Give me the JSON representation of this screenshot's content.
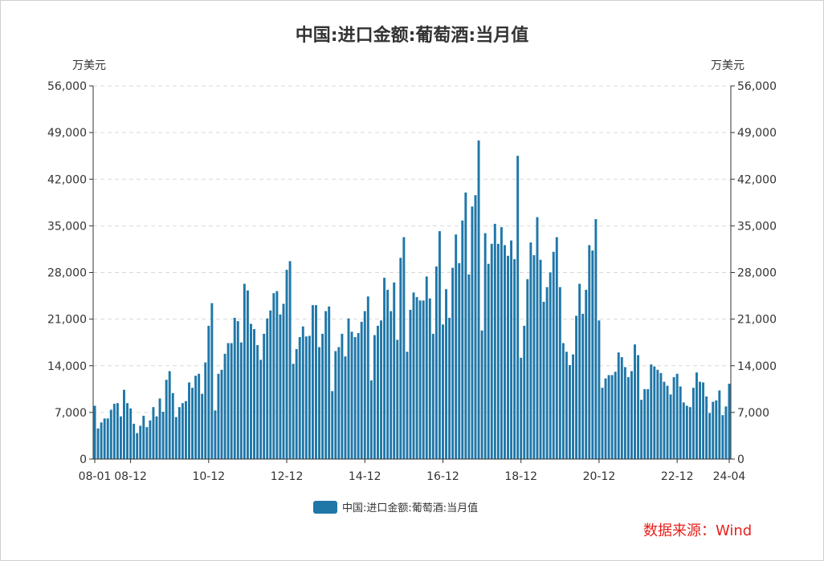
{
  "source_note": "数据来源：Wind",
  "colors": {
    "bar": "#1f77a8",
    "axis": "#333333",
    "grid": "#d9d9d9",
    "source": "#e8201c"
  },
  "chart_data": {
    "type": "bar",
    "title": "中国:进口金额:葡萄酒:当月值",
    "y_unit_left": "万美元",
    "y_unit_right": "万美元",
    "ylim": [
      0,
      56000
    ],
    "yticks": [
      "0",
      "7,000",
      "14,000",
      "21,000",
      "28,000",
      "35,000",
      "42,000",
      "49,000",
      "56,000"
    ],
    "grid": true,
    "legend": "bottom",
    "x_tick_labels": [
      "08-01",
      "08-12",
      "10-12",
      "12-12",
      "14-12",
      "16-12",
      "18-12",
      "20-12",
      "22-12",
      "24-04"
    ],
    "start_month": "2008-01",
    "series": [
      {
        "name": "中国:进口金额:葡萄酒:当月值",
        "values": [
          8000,
          4600,
          5500,
          6100,
          6100,
          7400,
          8300,
          8400,
          6400,
          10400,
          8400,
          7600,
          5300,
          3900,
          5000,
          6500,
          4800,
          5800,
          7800,
          6400,
          9100,
          7100,
          11900,
          13200,
          9900,
          6300,
          7800,
          8400,
          8700,
          11500,
          10700,
          12500,
          12800,
          9800,
          14500,
          20000,
          23400,
          7300,
          12800,
          13400,
          15800,
          17400,
          17400,
          21200,
          20700,
          17500,
          26300,
          25300,
          20300,
          19500,
          17100,
          14900,
          18800,
          21100,
          22300,
          24900,
          25200,
          21700,
          23300,
          28400,
          29700,
          14300,
          16500,
          18300,
          19900,
          18400,
          18500,
          23100,
          23100,
          16800,
          18800,
          22200,
          22900,
          10200,
          16200,
          16800,
          18800,
          15400,
          21100,
          19100,
          18300,
          18900,
          20600,
          22200,
          24400,
          11800,
          18600,
          20000,
          20800,
          27200,
          25400,
          22200,
          26500,
          17900,
          30200,
          33300,
          16100,
          22400,
          25000,
          24300,
          23800,
          23800,
          27400,
          24100,
          18800,
          28900,
          34200,
          20200,
          25500,
          21200,
          28700,
          33700,
          29400,
          35800,
          40000,
          27700,
          37900,
          39600,
          47800,
          19300,
          33900,
          29300,
          32300,
          35300,
          32300,
          34800,
          32100,
          30500,
          32800,
          30000,
          45500,
          15200,
          20000,
          27000,
          32500,
          30600,
          36300,
          29900,
          23600,
          25800,
          28000,
          31100,
          33300,
          25800,
          17400,
          16100,
          14100,
          15700,
          21500,
          26300,
          21800,
          25400,
          32100,
          31300,
          36000,
          20800,
          10700,
          12100,
          12600,
          12600,
          13100,
          16000,
          15300,
          13800,
          12300,
          13200,
          17200,
          15600,
          8900,
          10500,
          10500,
          14200,
          13900,
          13400,
          12900,
          11600,
          11000,
          9700,
          12300,
          12800,
          10900,
          8500,
          8000,
          7800,
          10700,
          13000,
          11600,
          11500,
          9400,
          6900,
          8600,
          8800,
          10300,
          6600,
          7900,
          11300
        ]
      }
    ]
  }
}
